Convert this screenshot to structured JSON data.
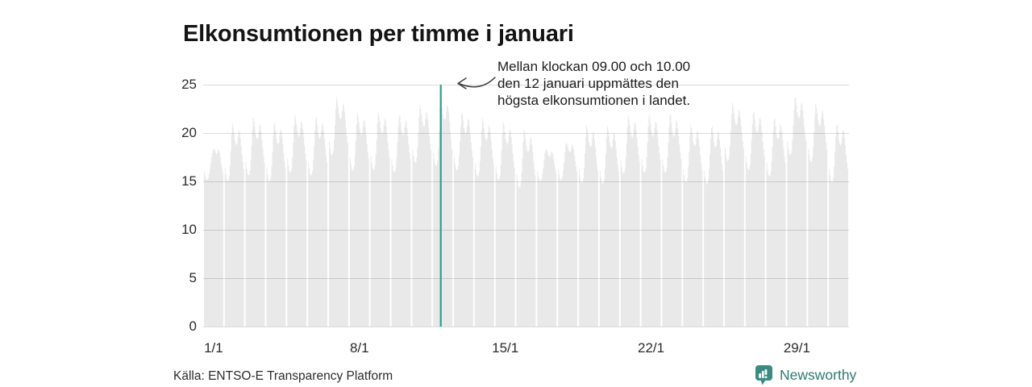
{
  "title": "Elkonsumtionen per timme i januari",
  "annotation": {
    "text": "Mellan klockan 09.00 och 10.00\nden 12 januari uppmättes den\nhögsta elkonsumtionen i landet."
  },
  "source": {
    "text": "Källa: ENTSO-E Transparency Platform"
  },
  "logo": {
    "text": "Newsworthy",
    "icon": "newsworthy-chart-bubble-icon"
  },
  "colors": {
    "bar": "#e9e9e9",
    "grid": "rgba(0,0,0,0.14)",
    "highlight": "#27a094",
    "logo_icon": "#3a8c82",
    "logo_text": "#2c7b72"
  },
  "chart_data": {
    "type": "bar",
    "title": "Elkonsumtionen per timme i januari",
    "x_unit": "hour",
    "xlabel": "",
    "ylabel": "",
    "ylim": [
      0,
      25
    ],
    "yticks": [
      0,
      5,
      10,
      15,
      20,
      25
    ],
    "grid": "horizontal",
    "legend": "none",
    "xticks": [
      {
        "label": "1/1",
        "day": 1
      },
      {
        "label": "8/1",
        "day": 8
      },
      {
        "label": "15/1",
        "day": 15
      },
      {
        "label": "22/1",
        "day": 22
      },
      {
        "label": "29/1",
        "day": 29
      }
    ],
    "highlight": {
      "day": 12,
      "date": "12/1",
      "hour_start": "09.00",
      "hour_end": "10.00",
      "note": "högsta elkonsumtionen i landet"
    },
    "days": [
      {
        "date": "1/1",
        "values": [
          16.0,
          15.6,
          15.3,
          15.2,
          15.2,
          15.4,
          15.8,
          16.3,
          16.9,
          17.5,
          17.9,
          18.2,
          18.4,
          18.3,
          18.0,
          17.8,
          17.9,
          18.2,
          18.3,
          18.0,
          17.5,
          16.9,
          16.4,
          15.9
        ]
      },
      {
        "date": "2/1",
        "values": [
          16.4,
          15.7,
          15.2,
          15.0,
          15.1,
          15.5,
          16.6,
          18.1,
          19.8,
          21.0,
          20.6,
          20.0,
          19.3,
          18.9,
          18.7,
          18.9,
          19.6,
          20.3,
          20.1,
          19.5,
          18.7,
          17.8,
          17.0,
          16.3
        ]
      },
      {
        "date": "3/1",
        "values": [
          17.0,
          16.3,
          15.8,
          15.6,
          15.7,
          16.1,
          17.2,
          18.7,
          20.4,
          21.6,
          21.2,
          20.6,
          19.9,
          19.5,
          19.3,
          19.5,
          20.2,
          20.9,
          20.7,
          20.1,
          19.3,
          18.4,
          17.6,
          16.9
        ]
      },
      {
        "date": "4/1",
        "values": [
          16.4,
          15.7,
          15.2,
          15.0,
          15.1,
          15.5,
          16.6,
          18.0,
          19.7,
          20.8,
          21.0,
          20.2,
          19.4,
          19.0,
          18.8,
          19.0,
          19.7,
          20.4,
          20.2,
          19.6,
          18.8,
          17.9,
          17.1,
          16.4
        ]
      },
      {
        "date": "5/1",
        "values": [
          17.3,
          16.6,
          16.1,
          15.9,
          16.0,
          16.4,
          17.5,
          19.0,
          20.7,
          21.9,
          21.5,
          20.9,
          20.2,
          19.8,
          19.6,
          19.8,
          20.5,
          21.2,
          21.0,
          20.4,
          19.6,
          18.7,
          17.9,
          17.2
        ]
      },
      {
        "date": "6/1",
        "values": [
          17.0,
          16.3,
          15.8,
          15.6,
          15.7,
          16.1,
          17.2,
          18.7,
          20.3,
          21.4,
          21.6,
          20.8,
          20.0,
          19.6,
          19.4,
          19.6,
          20.3,
          21.0,
          20.8,
          20.2,
          19.4,
          18.5,
          17.7,
          17.0
        ]
      },
      {
        "date": "7/1",
        "values": [
          19.1,
          18.4,
          17.9,
          17.7,
          17.8,
          18.2,
          19.3,
          20.8,
          22.5,
          23.7,
          23.3,
          22.7,
          22.0,
          21.6,
          21.4,
          21.6,
          22.3,
          23.0,
          22.8,
          22.2,
          21.4,
          20.5,
          19.7,
          19.0
        ]
      },
      {
        "date": "8/1",
        "values": [
          17.5,
          16.8,
          16.3,
          16.1,
          16.2,
          16.6,
          17.7,
          19.2,
          20.9,
          22.1,
          21.7,
          21.1,
          20.4,
          20.0,
          19.8,
          20.0,
          20.7,
          21.4,
          21.2,
          20.6,
          19.8,
          18.9,
          18.1,
          17.4
        ]
      },
      {
        "date": "9/1",
        "values": [
          17.6,
          16.9,
          16.4,
          16.2,
          16.3,
          16.7,
          17.8,
          19.3,
          21.0,
          22.2,
          21.8,
          21.2,
          20.5,
          20.1,
          19.9,
          20.1,
          20.8,
          21.5,
          21.3,
          20.7,
          19.9,
          19.0,
          18.2,
          17.5
        ]
      },
      {
        "date": "10/1",
        "values": [
          17.3,
          16.6,
          16.1,
          15.9,
          16.0,
          16.4,
          17.5,
          19.0,
          20.6,
          21.7,
          21.9,
          21.1,
          20.3,
          19.9,
          19.7,
          19.9,
          20.6,
          21.3,
          21.1,
          20.5,
          19.7,
          18.8,
          18.0,
          17.3
        ]
      },
      {
        "date": "11/1",
        "values": [
          18.3,
          17.6,
          17.1,
          16.9,
          17.0,
          17.4,
          18.5,
          20.0,
          21.7,
          22.9,
          22.5,
          21.9,
          21.2,
          20.8,
          20.6,
          20.8,
          21.5,
          22.2,
          22.0,
          21.4,
          20.6,
          19.7,
          18.9,
          18.2
        ]
      },
      {
        "date": "12/1",
        "values": [
          18.0,
          17.3,
          16.8,
          16.6,
          16.7,
          17.1,
          18.4,
          20.2,
          22.6,
          24.5,
          23.6,
          22.7,
          21.9,
          21.5,
          21.3,
          21.5,
          22.2,
          22.9,
          22.7,
          22.1,
          21.2,
          20.2,
          19.2,
          18.3
        ]
      },
      {
        "date": "13/1",
        "values": [
          17.5,
          16.8,
          16.3,
          16.1,
          16.2,
          16.6,
          17.7,
          19.2,
          20.8,
          21.9,
          22.1,
          21.3,
          20.5,
          20.1,
          19.9,
          20.1,
          20.8,
          21.5,
          21.3,
          20.7,
          19.9,
          19.0,
          18.2,
          17.5
        ]
      },
      {
        "date": "14/1",
        "values": [
          16.9,
          16.2,
          15.7,
          15.5,
          15.6,
          16.0,
          17.1,
          18.6,
          20.3,
          21.5,
          21.1,
          20.5,
          19.8,
          19.4,
          19.2,
          19.4,
          20.1,
          20.8,
          20.6,
          20.0,
          19.2,
          18.3,
          17.5,
          16.8
        ]
      },
      {
        "date": "15/1",
        "values": [
          16.5,
          15.8,
          15.3,
          15.1,
          15.2,
          15.6,
          16.7,
          18.2,
          19.9,
          21.1,
          20.7,
          20.1,
          19.4,
          19.0,
          18.8,
          19.0,
          19.7,
          20.4,
          20.2,
          19.6,
          18.8,
          17.9,
          17.1,
          16.4
        ]
      },
      {
        "date": "16/1",
        "values": [
          15.7,
          15.0,
          14.5,
          14.3,
          14.4,
          14.8,
          15.9,
          17.4,
          19.1,
          20.3,
          19.9,
          19.3,
          18.6,
          18.2,
          18.0,
          18.2,
          18.9,
          19.6,
          19.4,
          18.8,
          18.0,
          17.1,
          16.3,
          15.6
        ]
      },
      {
        "date": "17/1",
        "values": [
          16.0,
          15.5,
          15.2,
          15.0,
          15.1,
          15.3,
          15.8,
          16.4,
          17.2,
          17.9,
          18.2,
          18.3,
          18.1,
          17.8,
          17.6,
          17.5,
          17.7,
          18.0,
          18.1,
          17.8,
          17.3,
          16.8,
          16.3,
          15.8
        ]
      },
      {
        "date": "18/1",
        "values": [
          16.2,
          15.7,
          15.3,
          15.1,
          15.2,
          15.5,
          16.2,
          17.0,
          18.0,
          18.8,
          19.0,
          18.8,
          18.5,
          18.2,
          18.0,
          18.1,
          18.4,
          18.8,
          18.7,
          18.3,
          17.7,
          17.1,
          16.5,
          16.0
        ]
      },
      {
        "date": "19/1",
        "values": [
          16.2,
          15.5,
          15.0,
          14.8,
          14.9,
          15.3,
          16.4,
          17.9,
          19.6,
          20.8,
          20.4,
          19.8,
          19.1,
          18.7,
          18.5,
          18.7,
          19.4,
          20.1,
          19.9,
          19.3,
          18.5,
          17.6,
          16.8,
          16.1
        ]
      },
      {
        "date": "20/1",
        "values": [
          16.1,
          15.4,
          14.9,
          14.7,
          14.8,
          15.2,
          16.3,
          17.8,
          19.5,
          20.7,
          20.3,
          19.7,
          19.0,
          18.6,
          18.4,
          18.6,
          19.3,
          20.0,
          19.8,
          19.2,
          18.4,
          17.5,
          16.7,
          16.0
        ]
      },
      {
        "date": "21/1",
        "values": [
          17.2,
          16.5,
          16.0,
          15.8,
          15.9,
          16.3,
          17.4,
          18.9,
          20.6,
          21.8,
          21.4,
          20.8,
          20.1,
          19.7,
          19.5,
          19.7,
          20.4,
          21.1,
          20.9,
          20.3,
          19.5,
          18.6,
          17.8,
          17.1
        ]
      },
      {
        "date": "22/1",
        "values": [
          17.3,
          16.6,
          16.1,
          15.9,
          16.0,
          16.4,
          17.5,
          19.0,
          20.7,
          21.9,
          21.5,
          20.9,
          20.2,
          19.8,
          19.6,
          19.8,
          20.5,
          21.2,
          21.0,
          20.4,
          19.6,
          18.7,
          17.9,
          17.2
        ]
      },
      {
        "date": "23/1",
        "values": [
          17.3,
          16.6,
          16.1,
          15.9,
          16.0,
          16.4,
          17.5,
          19.0,
          20.6,
          21.8,
          21.9,
          21.0,
          20.2,
          19.8,
          19.6,
          19.8,
          20.5,
          21.3,
          21.1,
          20.5,
          19.7,
          18.8,
          18.0,
          17.3
        ]
      },
      {
        "date": "24/1",
        "values": [
          16.3,
          15.6,
          15.1,
          14.9,
          15.0,
          15.4,
          16.5,
          18.0,
          19.7,
          20.9,
          20.5,
          19.9,
          19.2,
          18.8,
          18.6,
          18.8,
          19.5,
          20.2,
          20.0,
          19.4,
          18.6,
          17.7,
          16.9,
          16.2
        ]
      },
      {
        "date": "25/1",
        "values": [
          16.1,
          15.4,
          14.9,
          14.7,
          14.8,
          15.2,
          16.3,
          17.8,
          19.4,
          20.5,
          20.7,
          19.9,
          19.1,
          18.7,
          18.5,
          18.7,
          19.4,
          20.1,
          19.9,
          19.3,
          18.5,
          17.6,
          16.8,
          16.1
        ]
      },
      {
        "date": "26/1",
        "values": [
          18.5,
          17.8,
          17.3,
          17.1,
          17.2,
          17.6,
          18.7,
          20.2,
          21.9,
          23.1,
          22.7,
          22.1,
          21.4,
          21.0,
          20.8,
          21.0,
          21.7,
          22.4,
          22.2,
          21.6,
          20.8,
          19.9,
          19.1,
          18.4
        ]
      },
      {
        "date": "27/1",
        "values": [
          17.6,
          16.9,
          16.4,
          16.2,
          16.3,
          16.7,
          17.8,
          19.3,
          20.9,
          22.0,
          22.2,
          21.4,
          20.6,
          20.2,
          20.0,
          20.2,
          20.9,
          21.6,
          21.4,
          20.8,
          20.0,
          19.1,
          18.3,
          17.6
        ]
      },
      {
        "date": "28/1",
        "values": [
          16.9,
          16.2,
          15.7,
          15.5,
          15.6,
          16.0,
          17.1,
          18.6,
          20.2,
          21.3,
          21.5,
          20.7,
          19.9,
          19.5,
          19.3,
          19.5,
          20.2,
          20.9,
          20.7,
          20.1,
          19.3,
          18.4,
          17.6,
          16.9
        ]
      },
      {
        "date": "29/1",
        "values": [
          19.1,
          18.4,
          17.9,
          17.7,
          17.8,
          18.2,
          19.3,
          20.8,
          22.4,
          23.6,
          23.7,
          22.9,
          22.1,
          21.7,
          21.5,
          21.7,
          22.4,
          23.1,
          22.9,
          22.3,
          21.5,
          20.6,
          19.8,
          19.1
        ]
      },
      {
        "date": "30/1",
        "values": [
          18.4,
          17.7,
          17.2,
          17.0,
          17.1,
          17.5,
          18.6,
          20.1,
          21.8,
          23.0,
          22.6,
          22.0,
          21.3,
          20.9,
          20.7,
          20.9,
          21.6,
          22.3,
          22.1,
          21.5,
          20.7,
          19.8,
          19.0,
          18.3
        ]
      },
      {
        "date": "31/1",
        "values": [
          16.3,
          15.6,
          15.1,
          14.9,
          15.0,
          15.4,
          16.5,
          18.0,
          19.6,
          20.7,
          20.9,
          20.1,
          19.3,
          18.9,
          18.7,
          18.9,
          19.6,
          20.3,
          20.1,
          19.5,
          18.7,
          17.8,
          17.0,
          16.3
        ]
      }
    ]
  }
}
